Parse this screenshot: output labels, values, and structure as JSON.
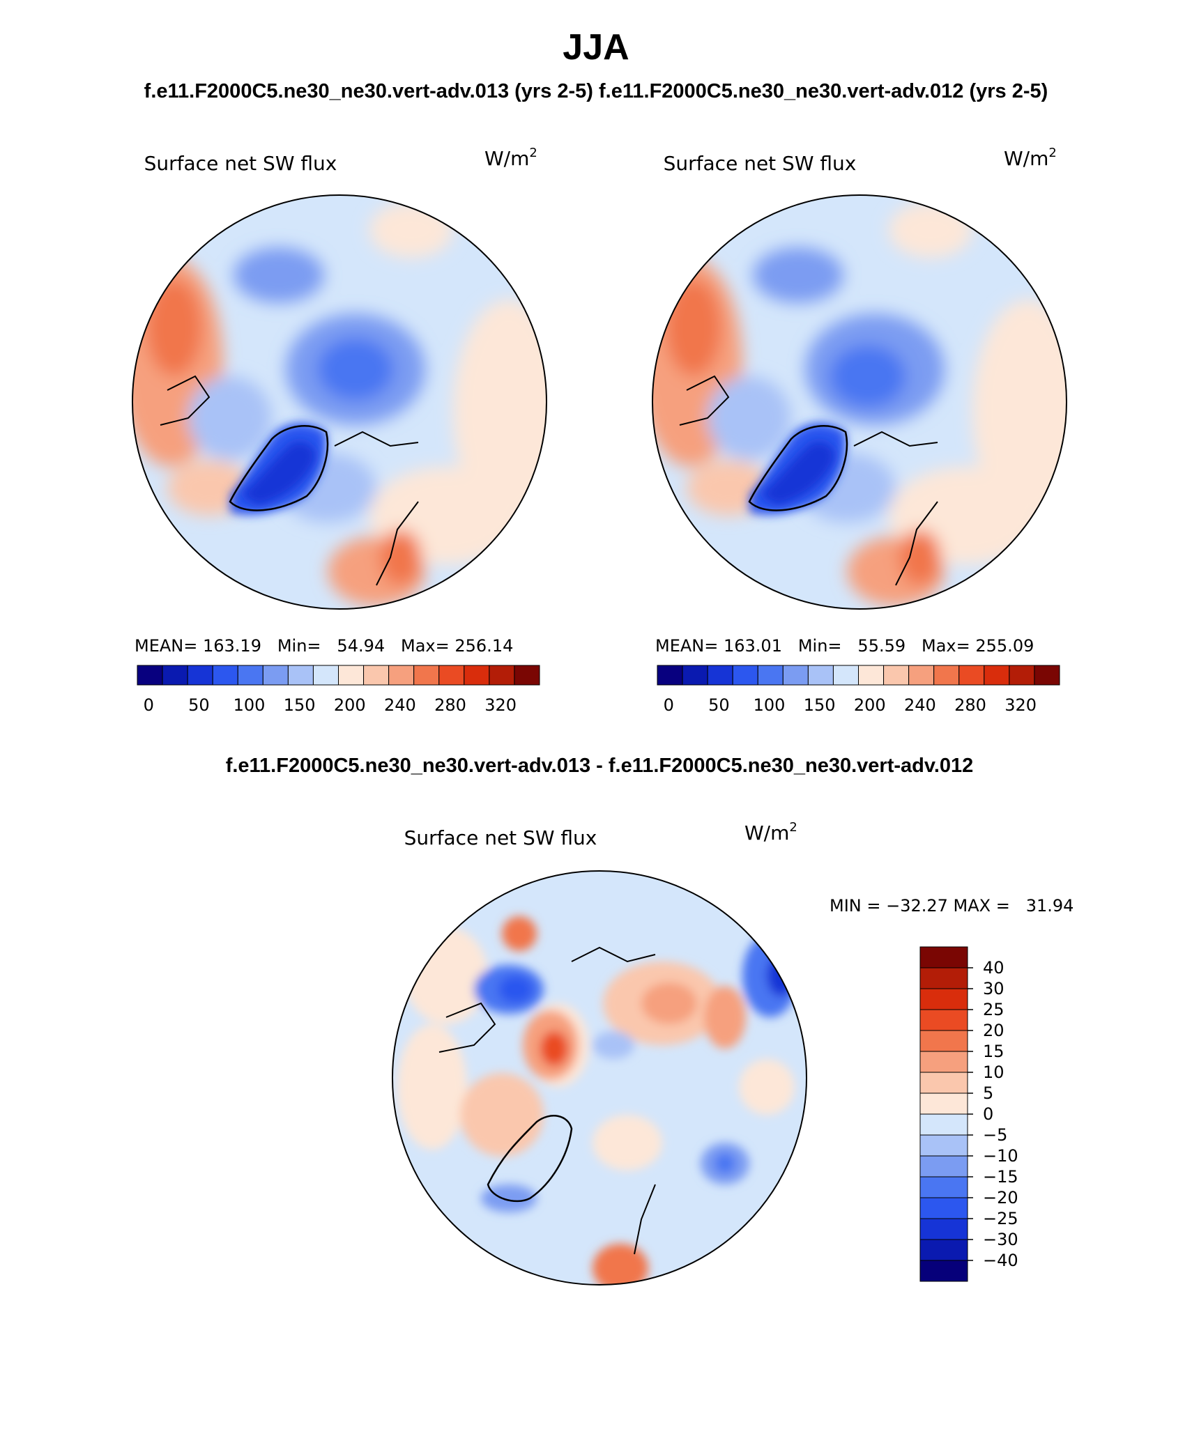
{
  "figure": {
    "season": "JJA",
    "top_header": "f.e11.F2000C5.ne30_ne30.vert-adv.013 (yrs 2-5) f.e11.F2000C5.ne30_ne30.vert-adv.012 (yrs 2-5)",
    "diff_header": "f.e11.F2000C5.ne30_ne30.vert-adv.013 - f.e11.F2000C5.ne30_ne30.vert-adv.012"
  },
  "colors": {
    "abs_palette": [
      "#08007f",
      "#0a1ab0",
      "#1634d6",
      "#2c57ef",
      "#4a76f2",
      "#7b9cf2",
      "#a9c2f7",
      "#d4e6fb",
      "#fde7d8",
      "#fac7ad",
      "#f6a07e",
      "#f1764c",
      "#ea4b23",
      "#d92d0c",
      "#b31d07",
      "#7a0603"
    ],
    "diff_palette": [
      "#06007a",
      "#0a1ab0",
      "#1634d6",
      "#2c57ef",
      "#4a76f2",
      "#7b9cf2",
      "#a9c2f7",
      "#d4e6fb",
      "#fde7d8",
      "#fac7ad",
      "#f6a07e",
      "#f1764c",
      "#ea4b23",
      "#d92d0c",
      "#b31d07",
      "#7a0603"
    ]
  },
  "chart_data": [
    {
      "type": "heatmap",
      "panel": "model-013",
      "title": "Surface net SW flux",
      "units": "W/m",
      "units_sup": "2",
      "stats_text": "MEAN= 163.19   Min=   54.94   Max= 256.14",
      "mean": 163.19,
      "min": 54.94,
      "max": 256.14,
      "colorbar_labels": [
        "0",
        "50",
        "100",
        "150",
        "200",
        "240",
        "280",
        "320"
      ],
      "colorbar_levels": [
        0,
        25,
        50,
        75,
        100,
        125,
        150,
        175,
        200,
        220,
        240,
        260,
        280,
        300,
        320
      ]
    },
    {
      "type": "heatmap",
      "panel": "model-012",
      "title": "Surface net SW flux",
      "units": "W/m",
      "units_sup": "2",
      "stats_text": "MEAN= 163.01   Min=   55.59   Max= 255.09",
      "mean": 163.01,
      "min": 55.59,
      "max": 255.09,
      "colorbar_labels": [
        "0",
        "50",
        "100",
        "150",
        "200",
        "240",
        "280",
        "320"
      ],
      "colorbar_levels": [
        0,
        25,
        50,
        75,
        100,
        125,
        150,
        175,
        200,
        220,
        240,
        260,
        280,
        300,
        320
      ]
    },
    {
      "type": "heatmap",
      "panel": "difference",
      "title": "Surface net SW flux",
      "units": "W/m",
      "units_sup": "2",
      "stats_text": "MIN = −32.27 MAX =   31.94",
      "min": -32.27,
      "max": 31.94,
      "colorbar_labels": [
        "40",
        "30",
        "25",
        "20",
        "15",
        "10",
        "5",
        "0",
        "−5",
        "−10",
        "−15",
        "−20",
        "−25",
        "−30",
        "−40"
      ],
      "colorbar_levels": [
        -40,
        -30,
        -25,
        -20,
        -15,
        -10,
        -5,
        0,
        5,
        10,
        15,
        20,
        25,
        30,
        40
      ]
    }
  ]
}
